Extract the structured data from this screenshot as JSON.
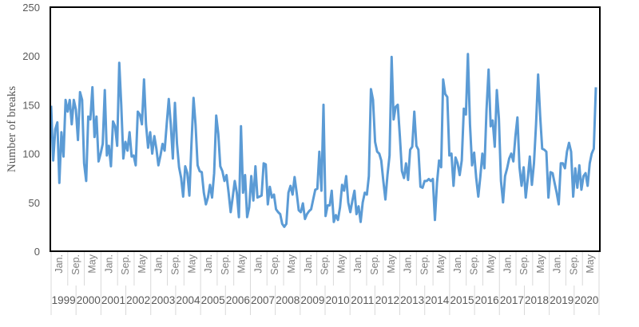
{
  "chart_data": {
    "type": "line",
    "title": "",
    "xlabel": "",
    "ylabel": "Number of breaks",
    "ylim": [
      0,
      250
    ],
    "yticks": [
      0,
      50,
      100,
      150,
      200,
      250
    ],
    "grid": false,
    "legend": "none",
    "frequency": "monthly",
    "start": "Jan. 1999",
    "month_tick_labels": [
      "Jan.",
      "Sep.",
      "May",
      "Jan.",
      "Sep.",
      "May",
      "Jan.",
      "Sep.",
      "May",
      "Jan.",
      "Sep.",
      "May",
      "Jan.",
      "Sep.",
      "May",
      "Jan.",
      "Sep.",
      "May",
      "Jan.",
      "Sep.",
      "May",
      "Jan.",
      "Sep.",
      "May",
      "Jan.",
      "Sep.",
      "May",
      "Jan.",
      "Sep.",
      "May",
      "Jan.",
      "Sep.",
      "May"
    ],
    "year_labels": [
      "1999",
      "2000",
      "2001",
      "2002",
      "2003",
      "2004",
      "2005",
      "2006",
      "2007",
      "2008",
      "2009",
      "2010",
      "2011",
      "2012",
      "2013",
      "2014",
      "2015",
      "2016",
      "2017",
      "2018",
      "2019",
      "2020"
    ],
    "series": [
      {
        "name": "Number of breaks",
        "color": "#5b9bd5",
        "values": [
          149,
          93,
          125,
          132,
          70,
          122,
          97,
          155,
          143,
          155,
          130,
          155,
          145,
          114,
          163,
          155,
          90,
          72,
          138,
          135,
          168,
          117,
          138,
          92,
          100,
          110,
          165,
          98,
          108,
          87,
          133,
          128,
          108,
          193,
          150,
          95,
          112,
          103,
          122,
          97,
          98,
          88,
          143,
          140,
          130,
          176,
          130,
          106,
          122,
          100,
          118,
          105,
          88,
          98,
          110,
          103,
          130,
          156,
          130,
          95,
          152,
          110,
          86,
          75,
          56,
          87,
          80,
          57,
          110,
          157,
          130,
          88,
          82,
          81,
          60,
          48,
          55,
          68,
          55,
          80,
          139,
          120,
          87,
          82,
          72,
          78,
          60,
          40,
          55,
          72,
          60,
          35,
          128,
          60,
          78,
          35,
          45,
          77,
          52,
          87,
          55,
          56,
          57,
          90,
          89,
          48,
          66,
          55,
          58,
          43,
          40,
          38,
          28,
          25,
          28,
          60,
          67,
          58,
          76,
          60,
          42,
          40,
          49,
          33,
          38,
          41,
          43,
          53,
          63,
          64,
          102,
          62,
          150,
          36,
          47,
          47,
          62,
          30,
          37,
          32,
          45,
          68,
          62,
          77,
          50,
          40,
          52,
          62,
          38,
          46,
          30,
          50,
          60,
          58,
          77,
          166,
          155,
          112,
          102,
          100,
          93,
          72,
          53,
          78,
          98,
          199,
          135,
          148,
          150,
          118,
          82,
          75,
          90,
          73,
          104,
          107,
          143,
          108,
          104,
          66,
          65,
          72,
          72,
          74,
          72,
          74,
          32,
          70,
          93,
          86,
          176,
          161,
          158,
          98,
          100,
          67,
          96,
          90,
          78,
          93,
          146,
          140,
          202,
          130,
          88,
          101,
          75,
          56,
          76,
          100,
          85,
          145,
          186,
          128,
          134,
          107,
          165,
          136,
          72,
          50,
          77,
          85,
          95,
          100,
          92,
          118,
          137,
          86,
          67,
          86,
          55,
          75,
          97,
          68,
          90,
          130,
          181,
          138,
          105,
          104,
          102,
          55,
          81,
          80,
          70,
          60,
          48,
          90,
          90,
          85,
          102,
          111,
          102,
          56,
          85,
          65,
          88,
          63,
          77,
          80,
          67,
          90,
          100,
          105,
          168
        ]
      }
    ]
  }
}
